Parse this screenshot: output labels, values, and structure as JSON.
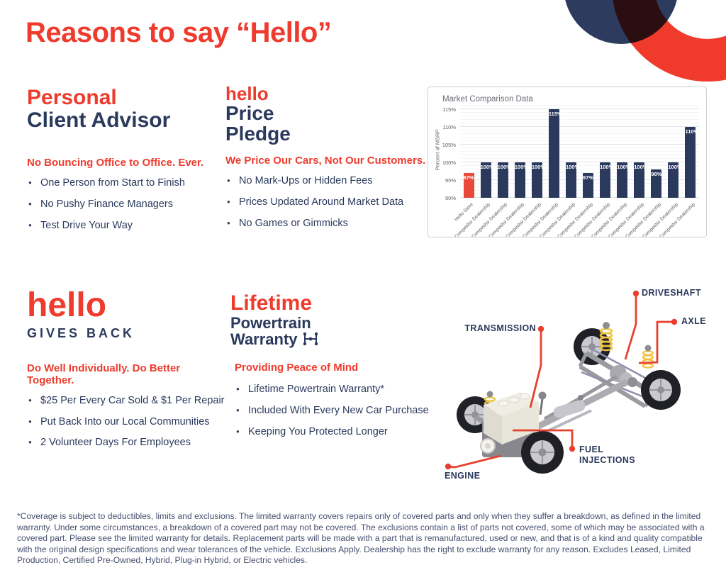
{
  "colors": {
    "brand_red": "#ee3b2d",
    "brand_navy": "#2b3a5c",
    "bar_navy": "#2b3a5c",
    "bar_red": "#e8493a",
    "footnote_navy": "#474f6e"
  },
  "header": {
    "title": "Reasons to say “Hello”"
  },
  "sections": {
    "personal_advisor": {
      "heading_accent": "Personal",
      "heading": "Client Advisor",
      "tagline": "No Bouncing Office to Office. Ever.",
      "bullets": [
        "One Person from Start to Finish",
        "No Pushy Finance Managers",
        "Test Drive Your Way"
      ]
    },
    "price_pledge": {
      "logo": "hello",
      "heading_line1": "Price",
      "heading_line2": "Pledge",
      "tagline": "We Price Our Cars, Not Our Customers.",
      "bullets": [
        "No Mark-Ups or Hidden Fees",
        "Prices Updated Around Market Data",
        "No Games or Gimmicks"
      ]
    },
    "gives_back": {
      "logo": "hello",
      "heading": "GIVES BACK",
      "tagline": "Do Well Individually. Do Better Together.",
      "bullets": [
        "$25 Per Every Car Sold & $1 Per Repair",
        "Put Back Into our Local Communities",
        "2 Volunteer Days For Employees"
      ]
    },
    "warranty": {
      "heading_accent": "Lifetime",
      "heading_line1": "Powertrain",
      "heading_line2": "Warranty",
      "tagline": "Providing Peace of Mind",
      "bullets": [
        "Lifetime Powertrain Warranty*",
        "Included With Every New Car Purchase",
        "Keeping You Protected Longer"
      ]
    }
  },
  "chart_data": {
    "type": "bar",
    "title": "Market Comparison Data",
    "xlabel": "",
    "ylabel": "Percent of MSRP",
    "ylim": [
      90,
      116.6
    ],
    "yticks": [
      90,
      95,
      100,
      105,
      110,
      115
    ],
    "grid": "on",
    "categories": [
      "Hello Store",
      "Competitor Dealership",
      "Competitor Dealership",
      "Competitor Dealership",
      "Competitor Dealership",
      "Competitor Dealership",
      "Competitor Dealership",
      "Competitor Dealership",
      "Competitor Dealership",
      "Competitor Dealership",
      "Competitor Dealership",
      "Competitor Dealership",
      "Competitor Dealership",
      "Competitor Dealership"
    ],
    "values": [
      97,
      100,
      100,
      100,
      100,
      115,
      100,
      97,
      100,
      100,
      100,
      98,
      100,
      110
    ],
    "bar_labels": [
      "97%",
      "100%",
      "100%",
      "100%",
      "100%",
      "115%",
      "100%",
      "97%",
      "100%",
      "100%",
      "100%",
      "98%",
      "100%",
      "110%"
    ],
    "highlight_index": 0,
    "bar_color": "#2b3a5c",
    "highlight_color": "#e8493a"
  },
  "diagram": {
    "labels": {
      "driveshaft": "DRIVESHAFT",
      "axle": "AXLE",
      "transmission": "TRANSMISSION",
      "fuel_injections": "FUEL INJECTIONS",
      "engine": "ENGINE"
    }
  },
  "footnote": "*Coverage is subject to deductibles, limits and exclusions. The limited warranty covers repairs only of covered parts and only when they suffer a breakdown, as defined in the limited warranty. Under some circumstances, a breakdown of a covered part may not be covered. The exclusions contain a list of parts not covered, some of which may be associated with a covered part. Please see the limited warranty for details. Replacement parts will be made with a part that is remanufactured, used or new, and that is of a kind and quality compatible with the original design specifications and wear tolerances of the vehicle. Exclusions Apply. Dealership has the right to exclude warranty for any reason. Excludes Leased, Limited Production, Certified Pre-Owned, Hybrid, Plug-in Hybrid, or Electric vehicles."
}
